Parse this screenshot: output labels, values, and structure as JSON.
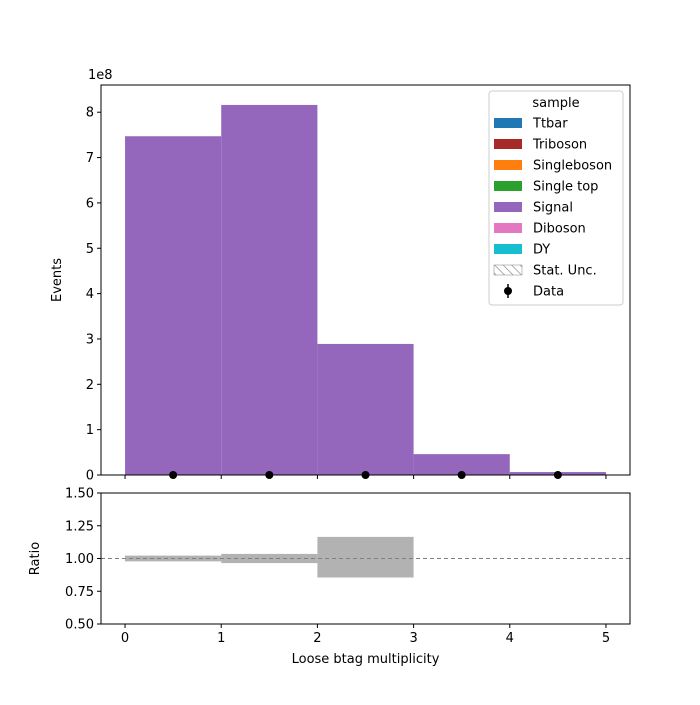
{
  "chart_data": [
    {
      "type": "bar",
      "panel": "main",
      "stacked": true,
      "bin_edges": [
        0,
        1,
        2,
        3,
        4,
        5
      ],
      "series": [
        {
          "name": "Ttbar",
          "color": "#1f77b4",
          "values": [
            0,
            0,
            0,
            0,
            0
          ]
        },
        {
          "name": "Triboson",
          "color": "#a62a2a",
          "values": [
            0,
            0,
            0,
            0,
            0
          ]
        },
        {
          "name": "Singleboson",
          "color": "#ff7f0e",
          "values": [
            0,
            0,
            0,
            0,
            0
          ]
        },
        {
          "name": "Single top",
          "color": "#2ca02c",
          "values": [
            0,
            0,
            0,
            0,
            0
          ]
        },
        {
          "name": "Signal",
          "color": "#9467bd",
          "values": [
            747000000.0,
            816000000.0,
            289000000.0,
            46000000.0,
            6500000.0
          ]
        },
        {
          "name": "Diboson",
          "color": "#e377c2",
          "values": [
            0,
            0,
            0,
            0,
            0
          ]
        },
        {
          "name": "DY",
          "color": "#17becf",
          "values": [
            0,
            0,
            0,
            0,
            0
          ]
        }
      ],
      "data_points": {
        "name": "Data",
        "x": [
          0.5,
          1.5,
          2.5,
          3.5,
          4.5
        ],
        "y": [
          0,
          0,
          0,
          0,
          0
        ]
      },
      "stat_unc_label": "Stat. Unc.",
      "legend_title": "sample",
      "legend_position": "top-right",
      "xlim": [
        -0.25,
        5.25
      ],
      "ylim": [
        0,
        860000000.0
      ],
      "y_offset_label": "1e8",
      "y_ticks": [
        0,
        100000000.0,
        200000000.0,
        300000000.0,
        400000000.0,
        500000000.0,
        600000000.0,
        700000000.0,
        800000000.0
      ],
      "y_tick_labels": [
        "0",
        "1",
        "2",
        "3",
        "4",
        "5",
        "6",
        "7",
        "8"
      ],
      "ylabel": "Events",
      "grid": false
    },
    {
      "type": "bar",
      "panel": "ratio",
      "bin_edges": [
        0,
        1,
        2,
        3,
        4,
        5
      ],
      "uncertainty_band": {
        "color": "#b2b2b2",
        "low": [
          0.978,
          0.965,
          0.855,
          null,
          null
        ],
        "high": [
          1.022,
          1.035,
          1.165,
          null,
          null
        ]
      },
      "reference_line": 1.0,
      "xlim": [
        -0.25,
        5.25
      ],
      "ylim": [
        0.5,
        1.5
      ],
      "y_ticks": [
        0.5,
        0.75,
        1.0,
        1.25,
        1.5
      ],
      "y_tick_labels": [
        "0.50",
        "0.75",
        "1.00",
        "1.25",
        "1.50"
      ],
      "x_ticks": [
        0,
        1,
        2,
        3,
        4,
        5
      ],
      "x_tick_labels": [
        "0",
        "1",
        "2",
        "3",
        "4",
        "5"
      ],
      "ylabel": "Ratio",
      "xlabel": "Loose btag multiplicity",
      "grid": false
    }
  ]
}
